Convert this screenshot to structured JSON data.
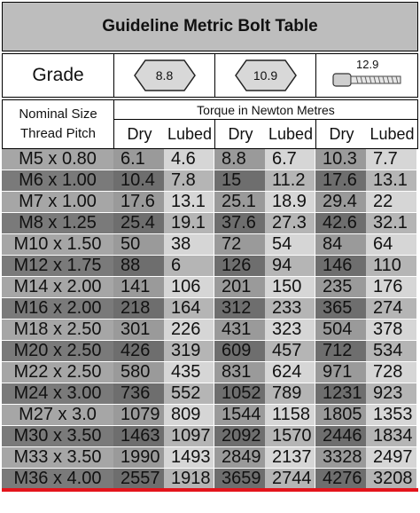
{
  "title": "Guideline Metric Bolt Table",
  "grade": {
    "label": "Grade",
    "grades": [
      "8.8",
      "10.9",
      "12.9"
    ]
  },
  "header": {
    "nominal_line1": "Nominal Size",
    "nominal_line2": "Thread Pitch",
    "torque": "Torque in Newton Metres",
    "sub": [
      "Dry",
      "Lubed",
      "Dry",
      "Lubed",
      "Dry",
      "Lubed"
    ]
  },
  "colors": {
    "dark_band": "#7a7a7a",
    "mid_band": "#a6a6a6",
    "light_band": "#d6d6d6",
    "accent_line": "#e3141b"
  },
  "rows": [
    {
      "size": "M5 x 0.80",
      "v": [
        "6.1",
        "4.6",
        "8.8",
        "6.7",
        "10.3",
        "7.7"
      ]
    },
    {
      "size": "M6 x 1.00",
      "v": [
        "10.4",
        "7.8",
        "15",
        "11.2",
        "17.6",
        "13.1"
      ]
    },
    {
      "size": "M7 x 1.00",
      "v": [
        "17.6",
        "13.1",
        "25.1",
        "18.9",
        "29.4",
        "22"
      ]
    },
    {
      "size": "M8 x 1.25",
      "v": [
        "25.4",
        "19.1",
        "37.6",
        "27.3",
        "42.6",
        "32.1"
      ]
    },
    {
      "size": "M10 x 1.50",
      "v": [
        "50",
        "38",
        "72",
        "54",
        "84",
        "64"
      ]
    },
    {
      "size": "M12 x 1.75",
      "v": [
        "88",
        "6",
        "126",
        "94",
        "146",
        "110"
      ]
    },
    {
      "size": "M14 x 2.00",
      "v": [
        "141",
        "106",
        "201",
        "150",
        "235",
        "176"
      ]
    },
    {
      "size": "M16 x 2.00",
      "v": [
        "218",
        "164",
        "312",
        "233",
        "365",
        "274"
      ]
    },
    {
      "size": "M18 x 2.50",
      "v": [
        "301",
        "226",
        "431",
        "323",
        "504",
        "378"
      ]
    },
    {
      "size": "M20 x 2.50",
      "v": [
        "426",
        "319",
        "609",
        "457",
        "712",
        "534"
      ]
    },
    {
      "size": "M22 x 2.50",
      "v": [
        "580",
        "435",
        "831",
        "624",
        "971",
        "728"
      ]
    },
    {
      "size": "M24 x 3.00",
      "v": [
        "736",
        "552",
        "1052",
        "789",
        "1231",
        "923"
      ]
    },
    {
      "size": "M27 x 3.0",
      "v": [
        "1079",
        "809",
        "1544",
        "1158",
        "1805",
        "1353"
      ]
    },
    {
      "size": "M30 x 3.50",
      "v": [
        "1463",
        "1097",
        "2092",
        "1570",
        "2446",
        "1834"
      ]
    },
    {
      "size": "M33 x 3.50",
      "v": [
        "1990",
        "1493",
        "2849",
        "2137",
        "3328",
        "2497"
      ]
    },
    {
      "size": "M36 x 4.00",
      "v": [
        "2557",
        "1918",
        "3659",
        "2744",
        "4276",
        "3208"
      ]
    }
  ]
}
